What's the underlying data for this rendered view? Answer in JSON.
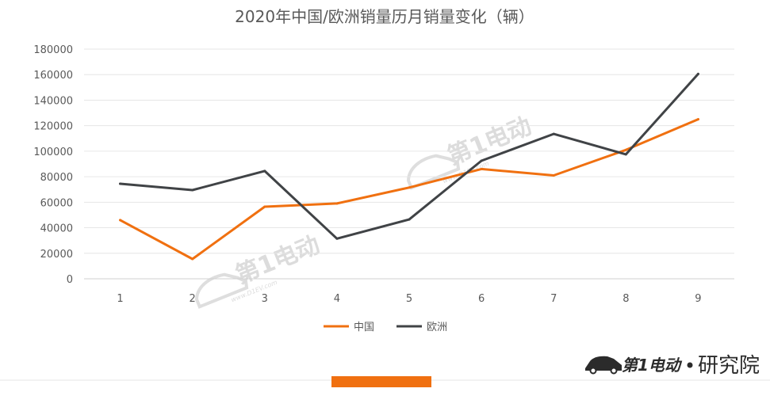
{
  "chart_data": {
    "type": "line",
    "title": "2020年中国/欧洲销量历月销量变化（辆）",
    "x": [
      "1",
      "2",
      "3",
      "4",
      "5",
      "6",
      "7",
      "8",
      "9"
    ],
    "series": [
      {
        "name": "中国",
        "color": "#f07010",
        "values": [
          46000,
          15500,
          56500,
          59000,
          71500,
          86000,
          81000,
          101000,
          125000
        ]
      },
      {
        "name": "欧洲",
        "color": "#404346",
        "values": [
          74500,
          69500,
          84500,
          31500,
          46500,
          92500,
          113500,
          97500,
          160500
        ]
      }
    ],
    "y_ticks": [
      "0",
      "20000",
      "40000",
      "60000",
      "80000",
      "100000",
      "120000",
      "140000",
      "160000",
      "180000"
    ],
    "ylim": [
      0,
      180000
    ],
    "grid": true,
    "legend_position": "bottom"
  },
  "watermark": {
    "brand": "第1电动",
    "url": "www.D1EV.com"
  },
  "footer": {
    "brand_logo": "第1电动",
    "brand_suffix": "研究院",
    "accent_color": "#f07010"
  }
}
